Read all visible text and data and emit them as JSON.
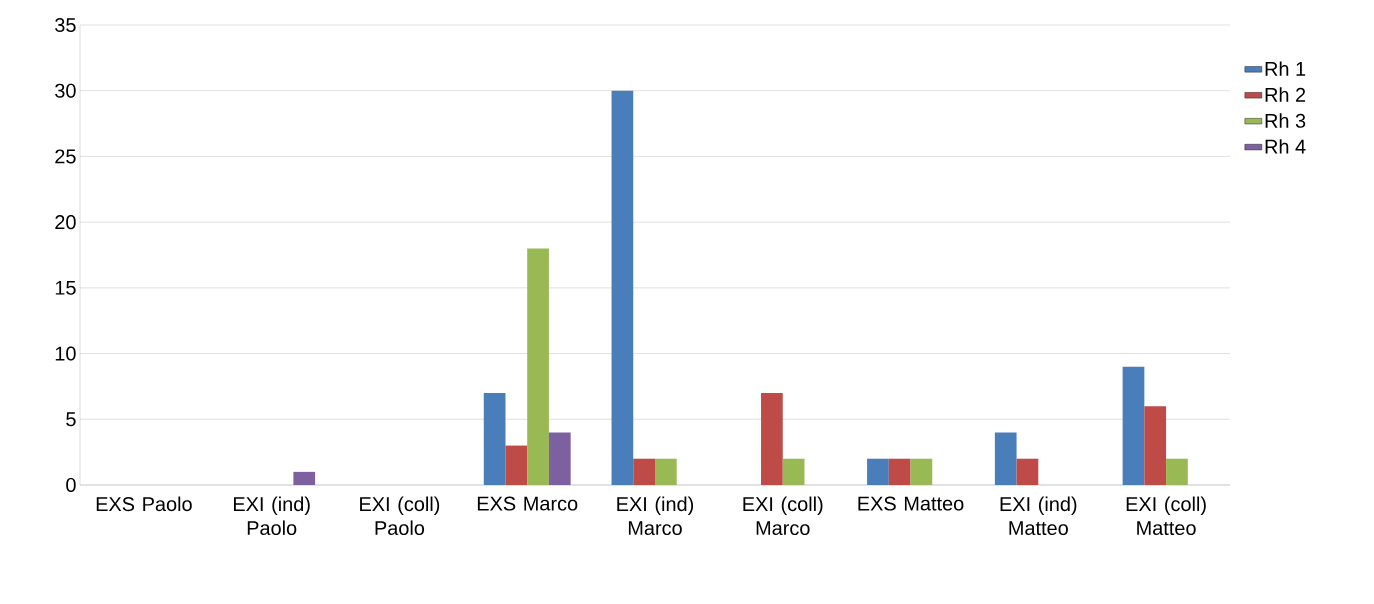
{
  "chart_data": {
    "type": "bar",
    "categories": [
      "EXS Paolo",
      "EXI (ind) Paolo",
      "EXI (coll) Paolo",
      "EXS Marco",
      "EXI (ind) Marco",
      "EXI (coll) Marco",
      "EXS Matteo",
      "EXI (ind) Matteo",
      "EXI (coll) Matteo"
    ],
    "series": [
      {
        "name": "Rh 1",
        "color": "#4a7ebb",
        "values": [
          0,
          0,
          0,
          7,
          30,
          0,
          2,
          4,
          9
        ]
      },
      {
        "name": "Rh 2",
        "color": "#be4b48",
        "values": [
          0,
          0,
          0,
          3,
          2,
          7,
          2,
          2,
          6
        ]
      },
      {
        "name": "Rh 3",
        "color": "#98b954",
        "values": [
          0,
          0,
          0,
          18,
          2,
          2,
          2,
          0,
          2
        ]
      },
      {
        "name": "Rh 4",
        "color": "#7d60a0",
        "values": [
          0,
          1,
          0,
          4,
          0,
          0,
          0,
          0,
          0
        ]
      }
    ],
    "ylim": [
      0,
      35
    ],
    "yticks": [
      0,
      5,
      10,
      15,
      20,
      25,
      30,
      35
    ],
    "grid": "y",
    "legend": "right"
  }
}
